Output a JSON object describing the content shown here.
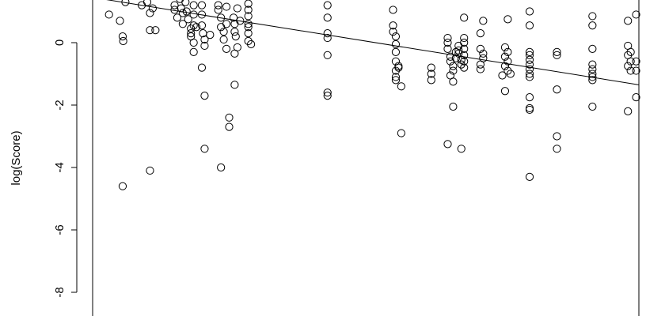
{
  "chart_data": {
    "type": "scatter",
    "title": "",
    "xlabel": "",
    "ylabel": "log(Score)",
    "yticks": [
      0,
      -2,
      -4,
      -6,
      -8
    ],
    "ytick_labels": [
      "0",
      "-2",
      "-4",
      "-6",
      "-8"
    ],
    "ylim": [
      -9.3,
      1.45
    ],
    "xlim": [
      0,
      1
    ],
    "trend_line": {
      "x": [
        0,
        1
      ],
      "y": [
        1.45,
        -1.35
      ]
    },
    "marker": "open-circle",
    "colors": {
      "points": "#000000",
      "line": "#000000"
    },
    "series": [
      {
        "points": [
          [
            0.03,
            0.9
          ],
          [
            0.05,
            0.7
          ],
          [
            0.055,
            0.2
          ],
          [
            0.056,
            0.05
          ],
          [
            0.06,
            1.3
          ],
          [
            0.055,
            -4.6
          ],
          [
            0.09,
            1.2
          ],
          [
            0.1,
            1.3
          ],
          [
            0.105,
            0.95
          ],
          [
            0.105,
            0.4
          ],
          [
            0.11,
            1.1
          ],
          [
            0.115,
            0.4
          ],
          [
            0.105,
            -4.1
          ],
          [
            0.15,
            1.2
          ],
          [
            0.15,
            1.05
          ],
          [
            0.155,
            0.8
          ],
          [
            0.16,
            1.4
          ],
          [
            0.162,
            1.1
          ],
          [
            0.165,
            0.95
          ],
          [
            0.165,
            0.6
          ],
          [
            0.17,
            1.3
          ],
          [
            0.172,
            1.0
          ],
          [
            0.175,
            0.75
          ],
          [
            0.18,
            0.3
          ],
          [
            0.18,
            0.45
          ],
          [
            0.18,
            0.2
          ],
          [
            0.185,
            1.2
          ],
          [
            0.185,
            0.9
          ],
          [
            0.185,
            0.55
          ],
          [
            0.185,
            0.0
          ],
          [
            0.185,
            -0.3
          ],
          [
            0.19,
            0.5
          ],
          [
            0.2,
            1.2
          ],
          [
            0.2,
            0.9
          ],
          [
            0.2,
            0.55
          ],
          [
            0.202,
            0.3
          ],
          [
            0.205,
            0.1
          ],
          [
            0.205,
            -0.1
          ],
          [
            0.2,
            -0.8
          ],
          [
            0.205,
            -1.7
          ],
          [
            0.205,
            -3.4
          ],
          [
            0.215,
            0.25
          ],
          [
            0.23,
            1.2
          ],
          [
            0.23,
            1.05
          ],
          [
            0.235,
            0.8
          ],
          [
            0.235,
            0.5
          ],
          [
            0.24,
            0.35
          ],
          [
            0.24,
            0.1
          ],
          [
            0.245,
            -0.2
          ],
          [
            0.25,
            -2.4
          ],
          [
            0.25,
            -2.7
          ],
          [
            0.245,
            1.15
          ],
          [
            0.245,
            0.6
          ],
          [
            0.235,
            -4.0
          ],
          [
            0.258,
            0.8
          ],
          [
            0.26,
            0.6
          ],
          [
            0.26,
            0.35
          ],
          [
            0.262,
            0.2
          ],
          [
            0.265,
            -0.15
          ],
          [
            0.26,
            -0.35
          ],
          [
            0.265,
            1.1
          ],
          [
            0.27,
            0.7
          ],
          [
            0.26,
            -1.35
          ],
          [
            0.285,
            1.25
          ],
          [
            0.285,
            1.05
          ],
          [
            0.285,
            0.85
          ],
          [
            0.285,
            0.6
          ],
          [
            0.285,
            0.5
          ],
          [
            0.285,
            0.3
          ],
          [
            0.285,
            0.05
          ],
          [
            0.29,
            -0.05
          ],
          [
            0.43,
            1.2
          ],
          [
            0.43,
            0.8
          ],
          [
            0.43,
            0.3
          ],
          [
            0.43,
            0.15
          ],
          [
            0.43,
            -0.4
          ],
          [
            0.43,
            -1.6
          ],
          [
            0.43,
            -1.7
          ],
          [
            0.55,
            1.05
          ],
          [
            0.55,
            0.55
          ],
          [
            0.55,
            0.35
          ],
          [
            0.555,
            0.2
          ],
          [
            0.555,
            -0.05
          ],
          [
            0.555,
            -0.3
          ],
          [
            0.555,
            -0.6
          ],
          [
            0.56,
            -0.8
          ],
          [
            0.555,
            -1.1
          ],
          [
            0.555,
            -1.2
          ],
          [
            0.555,
            -0.9
          ],
          [
            0.56,
            -0.75
          ],
          [
            0.565,
            -1.4
          ],
          [
            0.565,
            -2.9
          ],
          [
            0.62,
            -0.8
          ],
          [
            0.62,
            -1.0
          ],
          [
            0.62,
            -1.2
          ],
          [
            0.65,
            0.15
          ],
          [
            0.65,
            0.0
          ],
          [
            0.65,
            -0.2
          ],
          [
            0.655,
            -0.45
          ],
          [
            0.655,
            -0.6
          ],
          [
            0.66,
            -0.75
          ],
          [
            0.66,
            -0.9
          ],
          [
            0.665,
            -0.3
          ],
          [
            0.665,
            -0.5
          ],
          [
            0.67,
            -0.1
          ],
          [
            0.67,
            -0.25
          ],
          [
            0.67,
            -0.35
          ],
          [
            0.675,
            -0.55
          ],
          [
            0.675,
            -0.7
          ],
          [
            0.68,
            0.8
          ],
          [
            0.68,
            0.15
          ],
          [
            0.68,
            0.0
          ],
          [
            0.68,
            -0.2
          ],
          [
            0.68,
            -0.4
          ],
          [
            0.68,
            -0.6
          ],
          [
            0.68,
            -0.8
          ],
          [
            0.66,
            -2.05
          ],
          [
            0.65,
            -3.25
          ],
          [
            0.675,
            -3.4
          ],
          [
            0.655,
            -1.05
          ],
          [
            0.66,
            -1.25
          ],
          [
            0.715,
            0.7
          ],
          [
            0.71,
            0.3
          ],
          [
            0.71,
            -0.2
          ],
          [
            0.715,
            -0.35
          ],
          [
            0.715,
            -0.5
          ],
          [
            0.71,
            -0.7
          ],
          [
            0.71,
            -0.85
          ],
          [
            0.76,
            0.75
          ],
          [
            0.755,
            -0.15
          ],
          [
            0.76,
            -0.3
          ],
          [
            0.755,
            -0.45
          ],
          [
            0.76,
            -0.6
          ],
          [
            0.755,
            -0.75
          ],
          [
            0.76,
            -0.9
          ],
          [
            0.765,
            -1.0
          ],
          [
            0.75,
            -1.05
          ],
          [
            0.755,
            -1.55
          ],
          [
            0.8,
            1.0
          ],
          [
            0.8,
            0.55
          ],
          [
            0.8,
            -0.3
          ],
          [
            0.8,
            -0.4
          ],
          [
            0.8,
            -0.55
          ],
          [
            0.8,
            -0.7
          ],
          [
            0.8,
            -0.85
          ],
          [
            0.8,
            -1.0
          ],
          [
            0.8,
            -1.1
          ],
          [
            0.8,
            -1.75
          ],
          [
            0.8,
            -2.1
          ],
          [
            0.8,
            -2.15
          ],
          [
            0.8,
            -4.3
          ],
          [
            0.85,
            -0.3
          ],
          [
            0.85,
            -0.4
          ],
          [
            0.85,
            -1.5
          ],
          [
            0.85,
            -3.0
          ],
          [
            0.85,
            -3.4
          ],
          [
            0.915,
            0.85
          ],
          [
            0.915,
            0.55
          ],
          [
            0.915,
            -0.2
          ],
          [
            0.915,
            -0.7
          ],
          [
            0.915,
            -0.85
          ],
          [
            0.915,
            -1.0
          ],
          [
            0.915,
            -1.1
          ],
          [
            0.915,
            -1.2
          ],
          [
            0.915,
            -2.05
          ],
          [
            0.98,
            0.7
          ],
          [
            0.98,
            -0.1
          ],
          [
            0.985,
            -0.3
          ],
          [
            0.98,
            -0.4
          ],
          [
            0.985,
            -0.6
          ],
          [
            0.98,
            -0.75
          ],
          [
            0.985,
            -0.9
          ],
          [
            0.98,
            -2.2
          ],
          [
            0.995,
            0.9
          ],
          [
            0.995,
            -0.6
          ],
          [
            0.995,
            -0.9
          ],
          [
            0.995,
            -1.75
          ]
        ]
      }
    ]
  }
}
